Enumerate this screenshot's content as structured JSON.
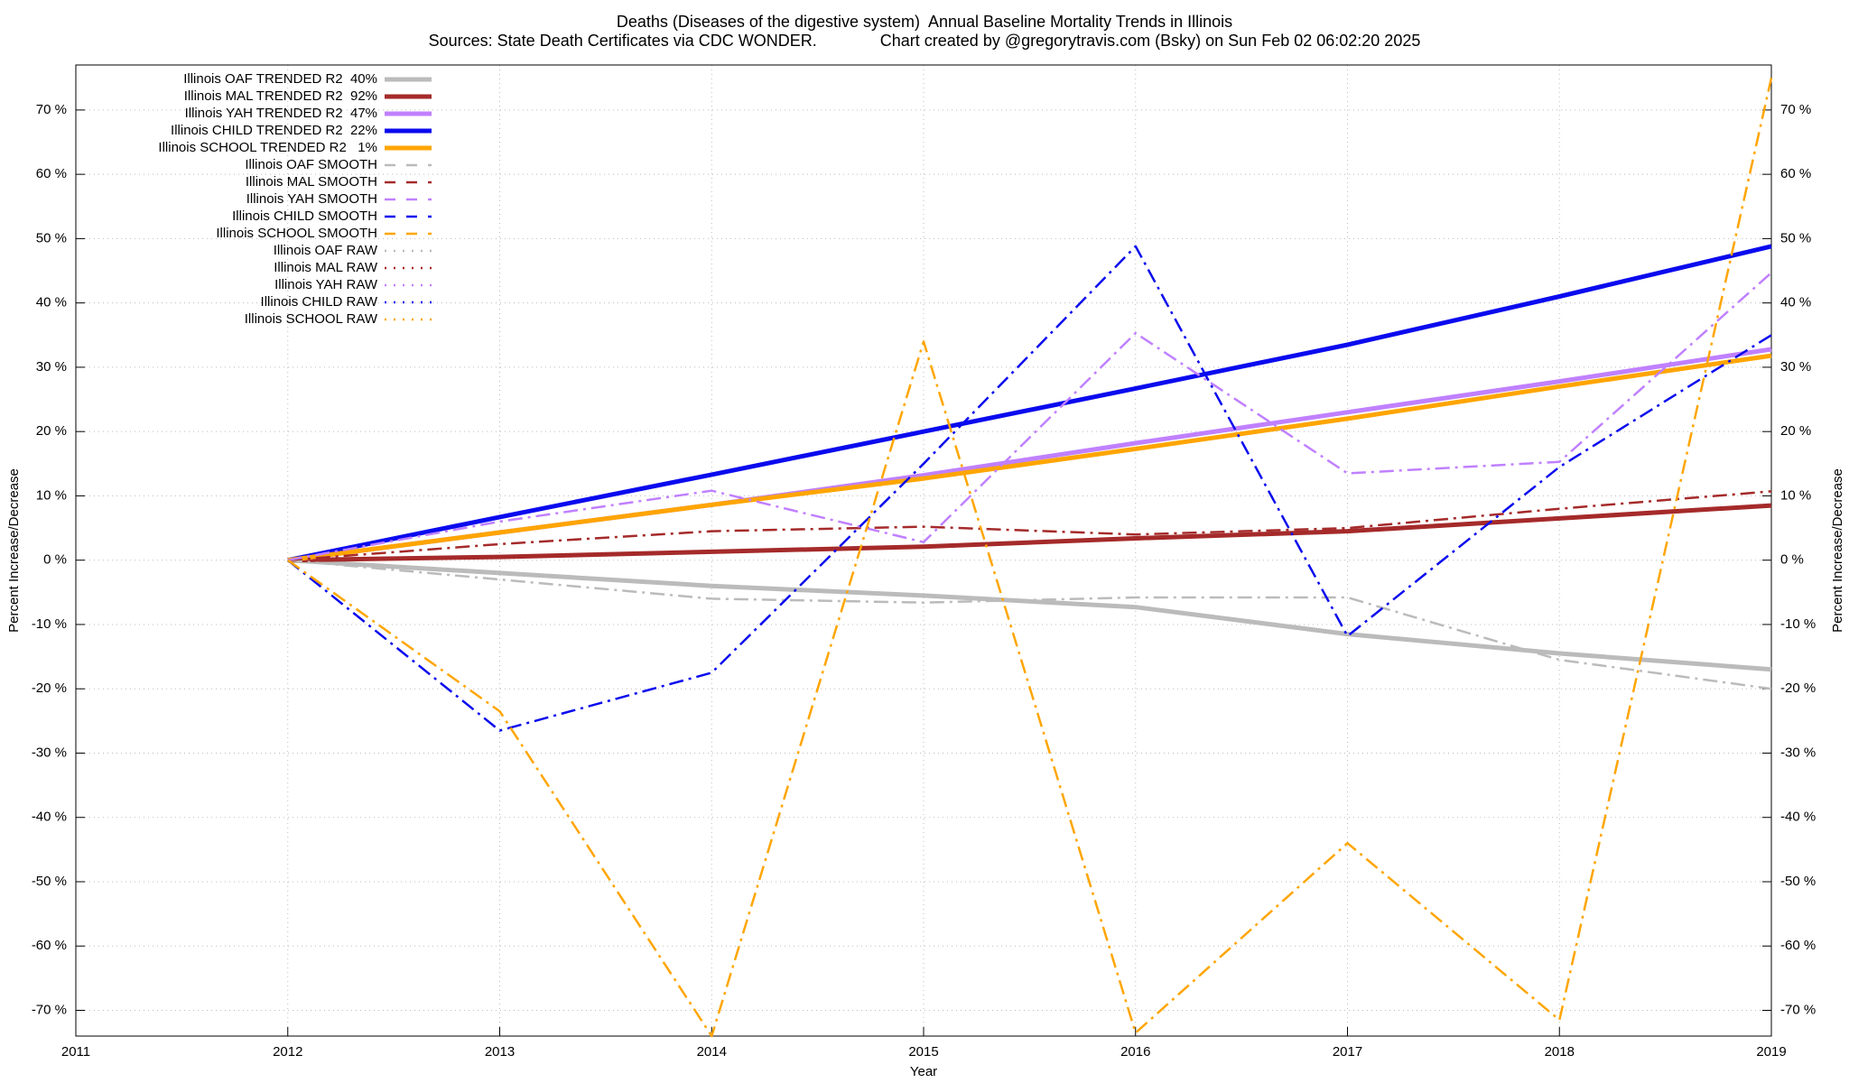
{
  "chart_data": {
    "type": "line",
    "title": "Deaths (Diseases of the digestive system)  Annual Baseline Mortality Trends in Illinois",
    "subtitle": "Sources: State Death Certificates via CDC WONDER.              Chart created by @gregorytravis.com (Bsky) on Sun Feb 02 06:02:20 2025",
    "xlabel": "Year",
    "ylabel": "Percent Increase/Decrease",
    "y2label": "Percent Increase/Decrease",
    "x": [
      2012,
      2013,
      2014,
      2015,
      2016,
      2017,
      2018,
      2019
    ],
    "xlim": [
      2011,
      2019
    ],
    "xticks": [
      2011,
      2012,
      2013,
      2014,
      2015,
      2016,
      2017,
      2018,
      2019
    ],
    "ylim": [
      -74,
      77
    ],
    "yticks": [
      {
        "value": -70,
        "label": "-70 %"
      },
      {
        "value": -60,
        "label": "-60 %"
      },
      {
        "value": -50,
        "label": "-50 %"
      },
      {
        "value": -40,
        "label": "-40 %"
      },
      {
        "value": -30,
        "label": "-30 %"
      },
      {
        "value": -20,
        "label": "-20 %"
      },
      {
        "value": -10,
        "label": "-10 %"
      },
      {
        "value": 0,
        "label": "0 %"
      },
      {
        "value": 10,
        "label": "10 %"
      },
      {
        "value": 20,
        "label": "20 %"
      },
      {
        "value": 30,
        "label": "30 %"
      },
      {
        "value": 40,
        "label": "40 %"
      },
      {
        "value": 50,
        "label": "50 %"
      },
      {
        "value": 60,
        "label": "60 %"
      },
      {
        "value": 70,
        "label": "70 %"
      }
    ],
    "y2lim": [
      -74,
      77
    ],
    "y2ticks": [
      {
        "value": -70,
        "label": "-70 %"
      },
      {
        "value": -60,
        "label": "-60 %"
      },
      {
        "value": -50,
        "label": "-50 %"
      },
      {
        "value": -40,
        "label": "-40 %"
      },
      {
        "value": -30,
        "label": "-30 %"
      },
      {
        "value": -20,
        "label": "-20 %"
      },
      {
        "value": -10,
        "label": "-10 %"
      },
      {
        "value": 0,
        "label": "0 %"
      },
      {
        "value": 10,
        "label": "10 %"
      },
      {
        "value": 20,
        "label": "20 %"
      },
      {
        "value": 30,
        "label": "30 %"
      },
      {
        "value": 40,
        "label": "40 %"
      },
      {
        "value": 50,
        "label": "50 %"
      },
      {
        "value": 60,
        "label": "60 %"
      },
      {
        "value": 70,
        "label": "70 %"
      }
    ],
    "grid": true,
    "legend": "upper left",
    "series": [
      {
        "name": "Illinois OAF TRENDED R2  40%",
        "color": "#bbbbbb",
        "style": "solid",
        "values": [
          0,
          -2,
          -4,
          -5.5,
          -7.3,
          -11.5,
          -14.5,
          -17
        ]
      },
      {
        "name": "Illinois MAL TRENDED R2  92%",
        "color": "#a52a2a",
        "style": "solid",
        "values": [
          0,
          0.5,
          1.3,
          2.1,
          3.4,
          4.5,
          6.5,
          8.5
        ]
      },
      {
        "name": "Illinois YAH TRENDED R2  47%",
        "color": "#c080ff",
        "style": "solid",
        "values": [
          0,
          4.3,
          8.6,
          13.2,
          18.2,
          23,
          27.8,
          32.8
        ]
      },
      {
        "name": "Illinois CHILD TRENDED R2  22%",
        "color": "#0a0aee",
        "style": "solid",
        "values": [
          0,
          6.7,
          13.3,
          20,
          26.7,
          33.5,
          41,
          48.8
        ]
      },
      {
        "name": "Illinois SCHOOL TRENDED R2   1%",
        "color": "#ffa500",
        "style": "solid",
        "values": [
          0,
          4.3,
          8.6,
          12.7,
          17.3,
          22,
          27,
          31.8
        ]
      },
      {
        "name": "Illinois OAF SMOOTH",
        "color": "#bbbbbb",
        "style": "dashdot",
        "values": [
          0,
          -3,
          -6,
          -6.6,
          -5.8,
          -5.8,
          -15.5,
          -20
        ]
      },
      {
        "name": "Illinois MAL SMOOTH",
        "color": "#a52a2a",
        "style": "dashdot",
        "values": [
          0,
          2.5,
          4.5,
          5.2,
          4,
          5,
          8,
          10.7
        ]
      },
      {
        "name": "Illinois YAH SMOOTH",
        "color": "#c080ff",
        "style": "dashdot",
        "values": [
          0,
          6,
          10.8,
          2.8,
          35.3,
          13.5,
          15.3,
          44.7
        ]
      },
      {
        "name": "Illinois CHILD SMOOTH",
        "color": "#0a0aee",
        "style": "dashdot",
        "values": [
          0,
          -26.5,
          -17.5,
          15,
          48.8,
          -11.8,
          14.5,
          35
        ]
      },
      {
        "name": "Illinois SCHOOL SMOOTH",
        "color": "#ffa500",
        "style": "dashdot",
        "values": [
          0,
          -23.5,
          -74,
          34,
          -73.5,
          -44,
          -71.5,
          75
        ]
      },
      {
        "name": "Illinois OAF RAW",
        "color": "#bbbbbb",
        "style": "dotted",
        "values": [
          null,
          null,
          null,
          null,
          null,
          null,
          null,
          null
        ]
      },
      {
        "name": "Illinois MAL RAW",
        "color": "#a52a2a",
        "style": "dotted",
        "values": [
          null,
          null,
          null,
          null,
          null,
          null,
          null,
          null
        ]
      },
      {
        "name": "Illinois YAH RAW",
        "color": "#c080ff",
        "style": "dotted",
        "values": [
          null,
          null,
          null,
          null,
          null,
          null,
          null,
          null
        ]
      },
      {
        "name": "Illinois CHILD RAW",
        "color": "#0a0aee",
        "style": "dotted",
        "values": [
          null,
          null,
          null,
          null,
          null,
          null,
          null,
          null
        ]
      },
      {
        "name": "Illinois SCHOOL RAW",
        "color": "#ffa500",
        "style": "dotted",
        "values": [
          null,
          null,
          null,
          null,
          null,
          null,
          null,
          null
        ]
      }
    ]
  }
}
